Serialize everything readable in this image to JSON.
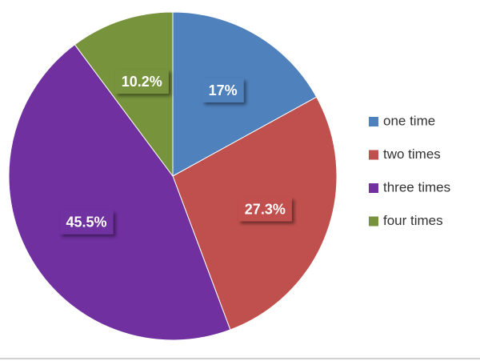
{
  "chart_data": {
    "type": "pie",
    "categories": [
      "one time",
      "two times",
      "three times",
      "four times"
    ],
    "values": [
      17,
      27.3,
      45.5,
      10.2
    ],
    "value_labels": [
      "17%",
      "27.3%",
      "45.5%",
      "10.2%"
    ],
    "colors": [
      "#4f81bd",
      "#c0504d",
      "#7030a0",
      "#77933c"
    ],
    "legend": "right"
  }
}
